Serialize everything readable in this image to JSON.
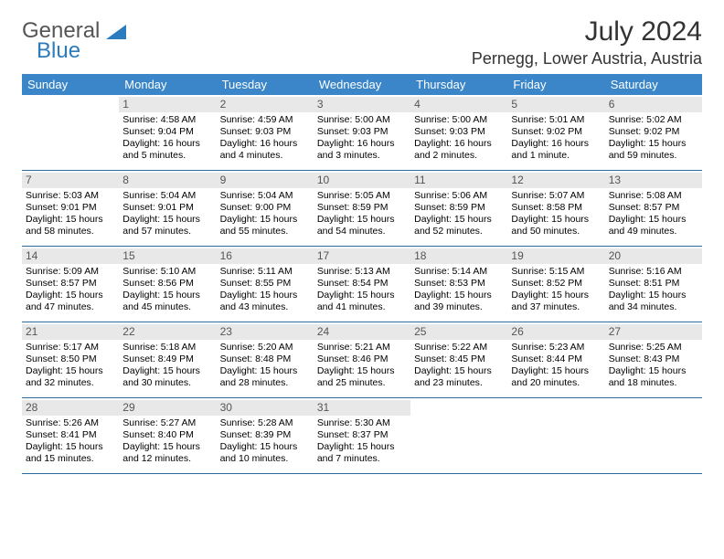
{
  "brand": {
    "part1": "General",
    "part2": "Blue",
    "colors": {
      "text": "#555555",
      "accent": "#2b7bbf"
    }
  },
  "header": {
    "title": "July 2024",
    "location": "Pernegg, Lower Austria, Austria"
  },
  "calendar": {
    "weekday_bg": "#3a86c8",
    "weekday_fg": "#ffffff",
    "week_border": "#2c6aa0",
    "daynum_bg": "#e8e8e8",
    "weekdays": [
      "Sunday",
      "Monday",
      "Tuesday",
      "Wednesday",
      "Thursday",
      "Friday",
      "Saturday"
    ],
    "weeks": [
      [
        {
          "n": "",
          "lines": [
            "",
            "",
            "",
            ""
          ],
          "empty": true
        },
        {
          "n": "1",
          "lines": [
            "Sunrise: 4:58 AM",
            "Sunset: 9:04 PM",
            "Daylight: 16 hours",
            "and 5 minutes."
          ]
        },
        {
          "n": "2",
          "lines": [
            "Sunrise: 4:59 AM",
            "Sunset: 9:03 PM",
            "Daylight: 16 hours",
            "and 4 minutes."
          ]
        },
        {
          "n": "3",
          "lines": [
            "Sunrise: 5:00 AM",
            "Sunset: 9:03 PM",
            "Daylight: 16 hours",
            "and 3 minutes."
          ]
        },
        {
          "n": "4",
          "lines": [
            "Sunrise: 5:00 AM",
            "Sunset: 9:03 PM",
            "Daylight: 16 hours",
            "and 2 minutes."
          ]
        },
        {
          "n": "5",
          "lines": [
            "Sunrise: 5:01 AM",
            "Sunset: 9:02 PM",
            "Daylight: 16 hours",
            "and 1 minute."
          ]
        },
        {
          "n": "6",
          "lines": [
            "Sunrise: 5:02 AM",
            "Sunset: 9:02 PM",
            "Daylight: 15 hours",
            "and 59 minutes."
          ]
        }
      ],
      [
        {
          "n": "7",
          "lines": [
            "Sunrise: 5:03 AM",
            "Sunset: 9:01 PM",
            "Daylight: 15 hours",
            "and 58 minutes."
          ]
        },
        {
          "n": "8",
          "lines": [
            "Sunrise: 5:04 AM",
            "Sunset: 9:01 PM",
            "Daylight: 15 hours",
            "and 57 minutes."
          ]
        },
        {
          "n": "9",
          "lines": [
            "Sunrise: 5:04 AM",
            "Sunset: 9:00 PM",
            "Daylight: 15 hours",
            "and 55 minutes."
          ]
        },
        {
          "n": "10",
          "lines": [
            "Sunrise: 5:05 AM",
            "Sunset: 8:59 PM",
            "Daylight: 15 hours",
            "and 54 minutes."
          ]
        },
        {
          "n": "11",
          "lines": [
            "Sunrise: 5:06 AM",
            "Sunset: 8:59 PM",
            "Daylight: 15 hours",
            "and 52 minutes."
          ]
        },
        {
          "n": "12",
          "lines": [
            "Sunrise: 5:07 AM",
            "Sunset: 8:58 PM",
            "Daylight: 15 hours",
            "and 50 minutes."
          ]
        },
        {
          "n": "13",
          "lines": [
            "Sunrise: 5:08 AM",
            "Sunset: 8:57 PM",
            "Daylight: 15 hours",
            "and 49 minutes."
          ]
        }
      ],
      [
        {
          "n": "14",
          "lines": [
            "Sunrise: 5:09 AM",
            "Sunset: 8:57 PM",
            "Daylight: 15 hours",
            "and 47 minutes."
          ]
        },
        {
          "n": "15",
          "lines": [
            "Sunrise: 5:10 AM",
            "Sunset: 8:56 PM",
            "Daylight: 15 hours",
            "and 45 minutes."
          ]
        },
        {
          "n": "16",
          "lines": [
            "Sunrise: 5:11 AM",
            "Sunset: 8:55 PM",
            "Daylight: 15 hours",
            "and 43 minutes."
          ]
        },
        {
          "n": "17",
          "lines": [
            "Sunrise: 5:13 AM",
            "Sunset: 8:54 PM",
            "Daylight: 15 hours",
            "and 41 minutes."
          ]
        },
        {
          "n": "18",
          "lines": [
            "Sunrise: 5:14 AM",
            "Sunset: 8:53 PM",
            "Daylight: 15 hours",
            "and 39 minutes."
          ]
        },
        {
          "n": "19",
          "lines": [
            "Sunrise: 5:15 AM",
            "Sunset: 8:52 PM",
            "Daylight: 15 hours",
            "and 37 minutes."
          ]
        },
        {
          "n": "20",
          "lines": [
            "Sunrise: 5:16 AM",
            "Sunset: 8:51 PM",
            "Daylight: 15 hours",
            "and 34 minutes."
          ]
        }
      ],
      [
        {
          "n": "21",
          "lines": [
            "Sunrise: 5:17 AM",
            "Sunset: 8:50 PM",
            "Daylight: 15 hours",
            "and 32 minutes."
          ]
        },
        {
          "n": "22",
          "lines": [
            "Sunrise: 5:18 AM",
            "Sunset: 8:49 PM",
            "Daylight: 15 hours",
            "and 30 minutes."
          ]
        },
        {
          "n": "23",
          "lines": [
            "Sunrise: 5:20 AM",
            "Sunset: 8:48 PM",
            "Daylight: 15 hours",
            "and 28 minutes."
          ]
        },
        {
          "n": "24",
          "lines": [
            "Sunrise: 5:21 AM",
            "Sunset: 8:46 PM",
            "Daylight: 15 hours",
            "and 25 minutes."
          ]
        },
        {
          "n": "25",
          "lines": [
            "Sunrise: 5:22 AM",
            "Sunset: 8:45 PM",
            "Daylight: 15 hours",
            "and 23 minutes."
          ]
        },
        {
          "n": "26",
          "lines": [
            "Sunrise: 5:23 AM",
            "Sunset: 8:44 PM",
            "Daylight: 15 hours",
            "and 20 minutes."
          ]
        },
        {
          "n": "27",
          "lines": [
            "Sunrise: 5:25 AM",
            "Sunset: 8:43 PM",
            "Daylight: 15 hours",
            "and 18 minutes."
          ]
        }
      ],
      [
        {
          "n": "28",
          "lines": [
            "Sunrise: 5:26 AM",
            "Sunset: 8:41 PM",
            "Daylight: 15 hours",
            "and 15 minutes."
          ]
        },
        {
          "n": "29",
          "lines": [
            "Sunrise: 5:27 AM",
            "Sunset: 8:40 PM",
            "Daylight: 15 hours",
            "and 12 minutes."
          ]
        },
        {
          "n": "30",
          "lines": [
            "Sunrise: 5:28 AM",
            "Sunset: 8:39 PM",
            "Daylight: 15 hours",
            "and 10 minutes."
          ]
        },
        {
          "n": "31",
          "lines": [
            "Sunrise: 5:30 AM",
            "Sunset: 8:37 PM",
            "Daylight: 15 hours",
            "and 7 minutes."
          ]
        },
        {
          "n": "",
          "lines": [
            "",
            "",
            "",
            ""
          ],
          "empty": true
        },
        {
          "n": "",
          "lines": [
            "",
            "",
            "",
            ""
          ],
          "empty": true
        },
        {
          "n": "",
          "lines": [
            "",
            "",
            "",
            ""
          ],
          "empty": true
        }
      ]
    ]
  }
}
